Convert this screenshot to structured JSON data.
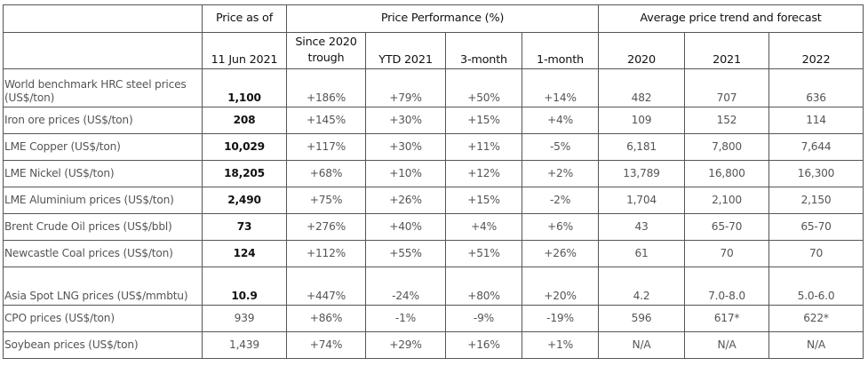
{
  "header": {
    "price_as_of": "Price as of",
    "price_performance": "Price Performance (%)",
    "avg_trend": "Average price trend and forecast",
    "columns": [
      "11 Jun 2021",
      "Since 2020 trough",
      "YTD 2021",
      "3-month",
      "1-month",
      "2020",
      "2021",
      "2022"
    ]
  },
  "rows": [
    {
      "label": "World benchmark HRC steel prices (US$/ton)",
      "cells": [
        "1,100",
        "+186%",
        "+79%",
        "+50%",
        "+14%",
        "482",
        "707",
        "636"
      ],
      "bold": true,
      "tall": true
    },
    {
      "label": "Iron ore prices (US$/ton)",
      "cells": [
        "208",
        "+145%",
        "+30%",
        "+15%",
        "+4%",
        "109",
        "152",
        "114"
      ],
      "bold": true
    },
    {
      "label": "LME Copper (US$/ton)",
      "cells": [
        "10,029",
        "+117%",
        "+30%",
        "+11%",
        "-5%",
        "6,181",
        "7,800",
        "7,644"
      ],
      "bold": true
    },
    {
      "label": "LME Nickel (US$/ton)",
      "cells": [
        "18,205",
        "+68%",
        "+10%",
        "+12%",
        "+2%",
        "13,789",
        "16,800",
        "16,300"
      ],
      "bold": true
    },
    {
      "label": "LME Aluminium prices (US$/ton)",
      "cells": [
        "2,490",
        "+75%",
        "+26%",
        "+15%",
        "-2%",
        "1,704",
        "2,100",
        "2,150"
      ],
      "bold": true
    },
    {
      "label": "Brent Crude Oil prices (US$/bbl)",
      "cells": [
        "73",
        "+276%",
        "+40%",
        "+4%",
        "+6%",
        "43",
        "65-70",
        "65-70"
      ],
      "bold": true
    },
    {
      "label": "Newcastle Coal prices (US$/ton)",
      "cells": [
        "124",
        "+112%",
        "+55%",
        "+51%",
        "+26%",
        "61",
        "70",
        "70"
      ],
      "bold": true
    },
    {
      "label": "Asia Spot LNG prices (US$/mmbtu)",
      "cells": [
        "10.9",
        "+447%",
        "-24%",
        "+80%",
        "+20%",
        "4.2",
        "7.0-8.0",
        "5.0-6.0"
      ],
      "bold": true,
      "tall": true
    },
    {
      "label": "CPO prices (US$/ton)",
      "cells": [
        "939",
        "+86%",
        "-1%",
        "-9%",
        "-19%",
        "596",
        "617*",
        "622*"
      ],
      "bold": false
    },
    {
      "label": "Soybean prices (US$/ton)",
      "cells": [
        "1,439",
        "+74%",
        "+29%",
        "+16%",
        "+1%",
        "N/A",
        "N/A",
        "N/A"
      ],
      "bold": false
    }
  ]
}
